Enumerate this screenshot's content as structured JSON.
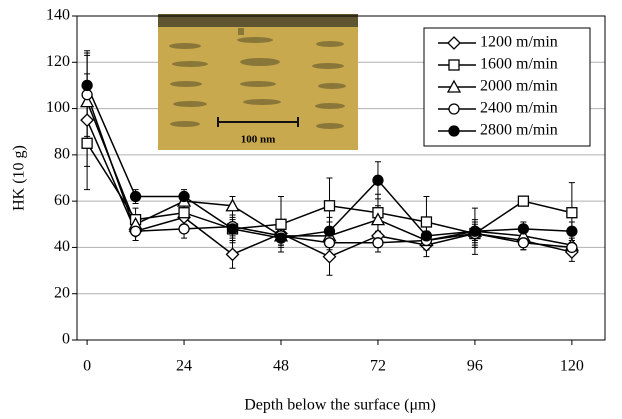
{
  "chart_data": {
    "type": "line",
    "xlabel": "Depth below the surface (μm)",
    "ylabel": "HK (10 g)",
    "annotations": [
      "100 nm"
    ],
    "x": [
      0,
      12,
      24,
      36,
      48,
      60,
      72,
      84,
      96,
      108,
      120
    ],
    "xlim": [
      -2.5,
      128.2
    ],
    "xticks": [
      0,
      24,
      48,
      72,
      96,
      120
    ],
    "ylim": [
      0,
      140
    ],
    "yticks": [
      0,
      20,
      40,
      60,
      80,
      100,
      120,
      140
    ],
    "grid": true,
    "legend": "upper right",
    "series": [
      {
        "name": "1200 m/min",
        "color": "#000000",
        "marker": "diamond",
        "filled": false,
        "values": [
          95,
          47,
          53,
          37,
          46,
          36,
          45,
          41,
          46,
          43,
          38
        ],
        "errors": [
          20,
          4,
          6,
          6,
          5,
          8,
          5,
          5,
          5,
          4,
          4
        ]
      },
      {
        "name": "1600 m/min",
        "color": "#000000",
        "marker": "square",
        "filled": false,
        "values": [
          85,
          52,
          55,
          48,
          50,
          58,
          55,
          51,
          46,
          60,
          55
        ],
        "errors": [
          20,
          5,
          5,
          6,
          12,
          12,
          8,
          11,
          6,
          2,
          13
        ]
      },
      {
        "name": "2000 m/min",
        "color": "#000000",
        "marker": "triangle",
        "filled": false,
        "values": [
          103,
          50,
          60,
          58,
          45,
          45,
          52,
          43,
          47,
          45,
          41
        ],
        "errors": [
          20,
          4,
          4,
          4,
          4,
          6,
          6,
          4,
          4,
          4,
          3
        ]
      },
      {
        "name": "2400 m/min",
        "color": "#000000",
        "marker": "circle",
        "filled": false,
        "values": [
          106,
          47,
          48,
          49,
          45,
          42,
          42,
          43,
          46,
          42,
          40
        ],
        "errors": [
          18,
          4,
          4,
          4,
          4,
          5,
          4,
          4,
          4,
          3,
          3
        ]
      },
      {
        "name": "2800 m/min",
        "color": "#000000",
        "marker": "circle",
        "filled": true,
        "values": [
          110,
          62,
          62,
          48,
          44,
          47,
          69,
          45,
          47,
          48,
          47
        ],
        "errors": [
          15,
          3,
          3,
          4,
          4,
          6,
          8,
          5,
          10,
          3,
          4
        ]
      }
    ]
  }
}
